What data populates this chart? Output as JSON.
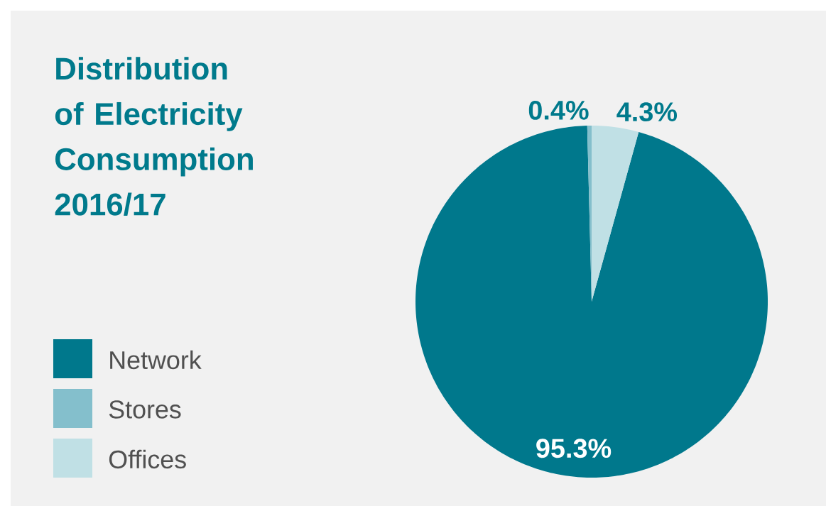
{
  "chart_data": {
    "type": "pie",
    "title": "Distribution of Electricity Consumption 2016/17",
    "categories": [
      "Network",
      "Stores",
      "Offices"
    ],
    "values": [
      95.3,
      0.4,
      4.3
    ],
    "colors": [
      "#00788c",
      "#84bfcc",
      "#c0e0e5"
    ],
    "value_labels": [
      "95.3%",
      "0.4%",
      "4.3%"
    ],
    "legend": "left"
  }
}
